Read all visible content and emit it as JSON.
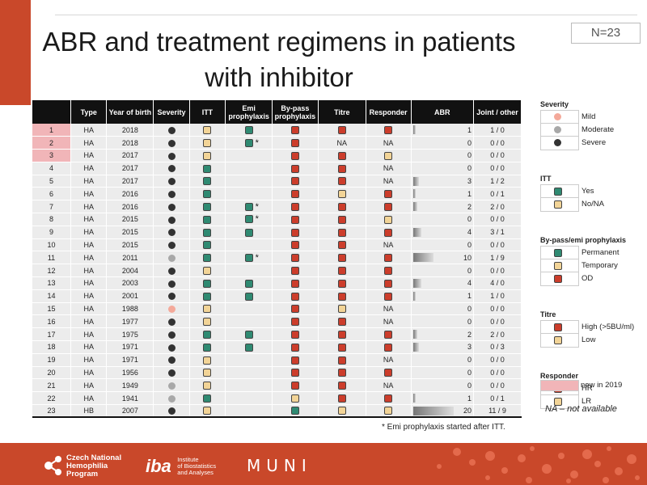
{
  "title": "ABR and treatment regimens in patients with inhibitor",
  "n_label": "N=23",
  "colors": {
    "mild": "#f4a99a",
    "moderate": "#a8a8a8",
    "severe": "#333333",
    "yes": "#2f8a72",
    "no_na": "#f2d497",
    "permanent": "#2f8a72",
    "temporary": "#f2d497",
    "od": "#cc3d2b",
    "high": "#cc3d2b",
    "low": "#f2d497",
    "hr": "#cc3d2b",
    "lr": "#f2d497",
    "new_in_2019": "#f1b5b8"
  },
  "table": {
    "headers": {
      "num": "",
      "type": "Type",
      "year": "Year of birth",
      "severity": "Severity",
      "itt": "ITT",
      "emi": "Emi prophylaxis",
      "bypass": "By-pass prophylaxis",
      "titre": "Titre",
      "responder": "Responder",
      "abr": "ABR",
      "joint": "Joint / other"
    },
    "abr_max": 20,
    "rows": [
      {
        "num": "1",
        "new": true,
        "type": "HA",
        "year": "2018",
        "severity": "severe",
        "itt": "no_na",
        "emi": "yes",
        "star": false,
        "bypass": "od",
        "titre": "high",
        "responder": "hr",
        "abr": "1",
        "joint": "1 / 0"
      },
      {
        "num": "2",
        "new": true,
        "type": "HA",
        "year": "2018",
        "severity": "severe",
        "itt": "no_na",
        "emi": "yes",
        "star": true,
        "bypass": "od",
        "titre": "NA",
        "responder": "NA",
        "abr": "0",
        "joint": "0 / 0"
      },
      {
        "num": "3",
        "new": true,
        "type": "HA",
        "year": "2017",
        "severity": "severe",
        "itt": "no_na",
        "emi": "",
        "star": false,
        "bypass": "od",
        "titre": "high",
        "responder": "lr",
        "abr": "0",
        "joint": "0 / 0"
      },
      {
        "num": "4",
        "new": false,
        "type": "HA",
        "year": "2017",
        "severity": "severe",
        "itt": "yes",
        "emi": "",
        "star": false,
        "bypass": "od",
        "titre": "high",
        "responder": "NA",
        "abr": "0",
        "joint": "0 / 0"
      },
      {
        "num": "5",
        "new": false,
        "type": "HA",
        "year": "2017",
        "severity": "severe",
        "itt": "yes",
        "emi": "",
        "star": false,
        "bypass": "od",
        "titre": "high",
        "responder": "NA",
        "abr": "3",
        "joint": "1 / 2"
      },
      {
        "num": "6",
        "new": false,
        "type": "HA",
        "year": "2016",
        "severity": "severe",
        "itt": "yes",
        "emi": "",
        "star": false,
        "bypass": "od",
        "titre": "low",
        "responder": "hr",
        "abr": "1",
        "joint": "0 / 1"
      },
      {
        "num": "7",
        "new": false,
        "type": "HA",
        "year": "2016",
        "severity": "severe",
        "itt": "yes",
        "emi": "yes",
        "star": true,
        "bypass": "od",
        "titre": "high",
        "responder": "hr",
        "abr": "2",
        "joint": "2 / 0"
      },
      {
        "num": "8",
        "new": false,
        "type": "HA",
        "year": "2015",
        "severity": "severe",
        "itt": "yes",
        "emi": "yes",
        "star": true,
        "bypass": "od",
        "titre": "high",
        "responder": "lr",
        "abr": "0",
        "joint": "0 / 0"
      },
      {
        "num": "9",
        "new": false,
        "type": "HA",
        "year": "2015",
        "severity": "severe",
        "itt": "yes",
        "emi": "yes",
        "star": false,
        "bypass": "od",
        "titre": "high",
        "responder": "hr",
        "abr": "4",
        "joint": "3 / 1"
      },
      {
        "num": "10",
        "new": false,
        "type": "HA",
        "year": "2015",
        "severity": "severe",
        "itt": "yes",
        "emi": "",
        "star": false,
        "bypass": "od",
        "titre": "high",
        "responder": "NA",
        "abr": "0",
        "joint": "0 / 0"
      },
      {
        "num": "11",
        "new": false,
        "type": "HA",
        "year": "2011",
        "severity": "moderate",
        "itt": "yes",
        "emi": "yes",
        "star": true,
        "bypass": "od",
        "titre": "high",
        "responder": "hr",
        "abr": "10",
        "joint": "1 / 9"
      },
      {
        "num": "12",
        "new": false,
        "type": "HA",
        "year": "2004",
        "severity": "severe",
        "itt": "no_na",
        "emi": "",
        "star": false,
        "bypass": "od",
        "titre": "high",
        "responder": "hr",
        "abr": "0",
        "joint": "0 / 0"
      },
      {
        "num": "13",
        "new": false,
        "type": "HA",
        "year": "2003",
        "severity": "severe",
        "itt": "yes",
        "emi": "yes",
        "star": false,
        "bypass": "od",
        "titre": "high",
        "responder": "hr",
        "abr": "4",
        "joint": "4 / 0"
      },
      {
        "num": "14",
        "new": false,
        "type": "HA",
        "year": "2001",
        "severity": "severe",
        "itt": "yes",
        "emi": "yes",
        "star": false,
        "bypass": "od",
        "titre": "high",
        "responder": "hr",
        "abr": "1",
        "joint": "1 / 0"
      },
      {
        "num": "15",
        "new": false,
        "type": "HA",
        "year": "1988",
        "severity": "mild",
        "itt": "no_na",
        "emi": "",
        "star": false,
        "bypass": "od",
        "titre": "low",
        "responder": "NA",
        "abr": "0",
        "joint": "0 / 0"
      },
      {
        "num": "16",
        "new": false,
        "type": "HA",
        "year": "1977",
        "severity": "severe",
        "itt": "no_na",
        "emi": "",
        "star": false,
        "bypass": "od",
        "titre": "high",
        "responder": "NA",
        "abr": "0",
        "joint": "0 / 0"
      },
      {
        "num": "17",
        "new": false,
        "type": "HA",
        "year": "1975",
        "severity": "severe",
        "itt": "yes",
        "emi": "yes",
        "star": false,
        "bypass": "od",
        "titre": "high",
        "responder": "hr",
        "abr": "2",
        "joint": "2 / 0"
      },
      {
        "num": "18",
        "new": false,
        "type": "HA",
        "year": "1971",
        "severity": "severe",
        "itt": "yes",
        "emi": "yes",
        "star": false,
        "bypass": "od",
        "titre": "high",
        "responder": "hr",
        "abr": "3",
        "joint": "0 / 3"
      },
      {
        "num": "19",
        "new": false,
        "type": "HA",
        "year": "1971",
        "severity": "severe",
        "itt": "no_na",
        "emi": "",
        "star": false,
        "bypass": "od",
        "titre": "high",
        "responder": "NA",
        "abr": "0",
        "joint": "0 / 0"
      },
      {
        "num": "20",
        "new": false,
        "type": "HA",
        "year": "1956",
        "severity": "severe",
        "itt": "no_na",
        "emi": "",
        "star": false,
        "bypass": "od",
        "titre": "high",
        "responder": "hr",
        "abr": "0",
        "joint": "0 / 0"
      },
      {
        "num": "21",
        "new": false,
        "type": "HA",
        "year": "1949",
        "severity": "moderate",
        "itt": "no_na",
        "emi": "",
        "star": false,
        "bypass": "od",
        "titre": "high",
        "responder": "NA",
        "abr": "0",
        "joint": "0 / 0"
      },
      {
        "num": "22",
        "new": false,
        "type": "HA",
        "year": "1941",
        "severity": "moderate",
        "itt": "yes",
        "emi": "",
        "star": false,
        "bypass": "temporary",
        "titre": "high",
        "responder": "hr",
        "abr": "1",
        "joint": "0 / 1"
      },
      {
        "num": "23",
        "new": false,
        "type": "HB",
        "year": "2007",
        "severity": "severe",
        "itt": "no_na",
        "emi": "",
        "star": false,
        "bypass": "permanent",
        "titre": "low",
        "responder": "lr",
        "abr": "20",
        "joint": "11 / 9"
      }
    ]
  },
  "star_symbol": "*",
  "footnote": "* Emi prophylaxis  started after ITT.",
  "legend": {
    "severity": {
      "title": "Severity",
      "items": [
        {
          "key": "mild",
          "label": "Mild",
          "shape": "dot"
        },
        {
          "key": "moderate",
          "label": "Moderate",
          "shape": "dot"
        },
        {
          "key": "severe",
          "label": "Severe",
          "shape": "dot"
        }
      ]
    },
    "itt": {
      "title": "ITT",
      "items": [
        {
          "key": "yes",
          "label": "Yes",
          "shape": "sq"
        },
        {
          "key": "no_na",
          "label": "No/NA",
          "shape": "sq"
        }
      ]
    },
    "bypass": {
      "title": "By-pass/emi prophylaxis",
      "items": [
        {
          "key": "permanent",
          "label": "Permanent",
          "shape": "sq"
        },
        {
          "key": "temporary",
          "label": "Temporary",
          "shape": "sq"
        },
        {
          "key": "od",
          "label": "OD",
          "shape": "sq"
        }
      ]
    },
    "titre": {
      "title": "Titre",
      "items": [
        {
          "key": "high",
          "label": "High (>5BU/ml)",
          "shape": "sq"
        },
        {
          "key": "low",
          "label": "Low",
          "shape": "sq"
        }
      ]
    },
    "responder": {
      "title": "Responder",
      "items": [
        {
          "key": "hr",
          "label": "HR",
          "shape": "sq"
        },
        {
          "key": "lr",
          "label": "LR",
          "shape": "sq"
        }
      ]
    },
    "new_label": "new in 2019",
    "na_note": "NA – not available"
  },
  "footer": {
    "cnh": [
      "Czech National",
      "Hemophilia",
      "Program"
    ],
    "iba_big": "iba",
    "iba_small": [
      "Institute",
      "of Biostatistics",
      "and Analyses"
    ],
    "muni": "MUNI"
  }
}
